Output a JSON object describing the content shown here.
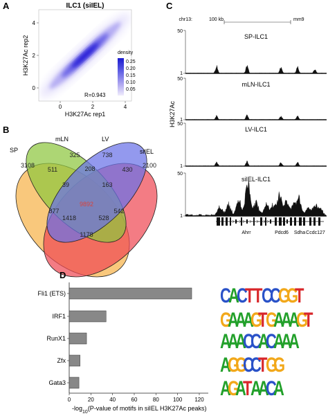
{
  "panel_a": {
    "letter": "A",
    "title": "ILC1 (siIEL)",
    "xlabel": "H3K27Ac rep1",
    "ylabel": "H3K27Ac rep2",
    "legend_title": "density",
    "legend_ticks": [
      "0.25",
      "0.20",
      "0.15",
      "0.10",
      "0.05"
    ],
    "legend_colors": [
      "#2020d0",
      "#5050e0",
      "#8a80ea",
      "#b8b0f2",
      "#ded8fa"
    ],
    "annotation": "R=0.943",
    "x_ticks": [
      "0",
      "2",
      "4"
    ],
    "y_ticks": [
      "4",
      "2",
      "0"
    ]
  },
  "panel_b": {
    "letter": "B",
    "sets": [
      {
        "name": "SP",
        "color": "#f7b34a"
      },
      {
        "name": "mLN",
        "color": "#8dc63f"
      },
      {
        "name": "LV",
        "color": "#6a72e8"
      },
      {
        "name": "siIEL",
        "color": "#ee4a55"
      }
    ],
    "regions": [
      {
        "value": "3108",
        "color": "#222222"
      },
      {
        "value": "325",
        "color": "#222222"
      },
      {
        "value": "738",
        "color": "#222222"
      },
      {
        "value": "2100",
        "color": "#222222"
      },
      {
        "value": "511",
        "color": "#222222"
      },
      {
        "value": "208",
        "color": "#222222"
      },
      {
        "value": "430",
        "color": "#222222"
      },
      {
        "value": "39",
        "color": "#222222"
      },
      {
        "value": "163",
        "color": "#222222"
      },
      {
        "value": "877",
        "color": "#222222"
      },
      {
        "value": "9892",
        "color": "#d9433c"
      },
      {
        "value": "542",
        "color": "#222222"
      },
      {
        "value": "1418",
        "color": "#222222"
      },
      {
        "value": "528",
        "color": "#222222"
      },
      {
        "value": "1178",
        "color": "#222222"
      }
    ]
  },
  "panel_c": {
    "letter": "C",
    "chrom": "chr13:",
    "scale_label": "100 kb",
    "genome": "mm9",
    "ylabel": "H3K27Ac",
    "tracks": [
      {
        "name": "SP-ILC1",
        "ymax": "50",
        "ymin": "1"
      },
      {
        "name": "mLN-ILC1",
        "ymax": "50",
        "ymin": "1"
      },
      {
        "name": "LV-ILC1",
        "ymax": "50",
        "ymin": "1"
      },
      {
        "name": "siIEL-ILC1",
        "ymax": "50",
        "ymin": "1"
      }
    ],
    "genes": [
      "Ahrr",
      "Pdcd6",
      "Sdha",
      "Ccdc127"
    ]
  },
  "panel_d": {
    "letter": "D",
    "chart_data": {
      "type": "bar",
      "orientation": "horizontal",
      "categories": [
        "Fli1 (ETS)",
        "IRF1",
        "RunX1",
        "Zfx",
        "Gata3"
      ],
      "values": [
        113,
        34,
        16,
        10,
        9
      ],
      "xlim": [
        0,
        120
      ],
      "x_ticks": [
        "0",
        "20",
        "40",
        "60",
        "80",
        "100",
        "120"
      ],
      "xlabel_prefix": "-log",
      "xlabel_sub": "10",
      "xlabel_suffix": "(P-value of motifs in siIEL H3K27Ac peaks)",
      "bar_color": "#888888"
    },
    "motifs": [
      {
        "seq": "CACTTCCGGT"
      },
      {
        "seq": "GAAAGTGAAAGT"
      },
      {
        "seq": "AAACCACAAA"
      },
      {
        "seq": "AGGCCTGG"
      },
      {
        "seq": "AGATAACA"
      }
    ],
    "nucleotide_colors": {
      "A": "#22a02a",
      "C": "#2a52c8",
      "G": "#f2a81a",
      "T": "#d8262a"
    }
  }
}
